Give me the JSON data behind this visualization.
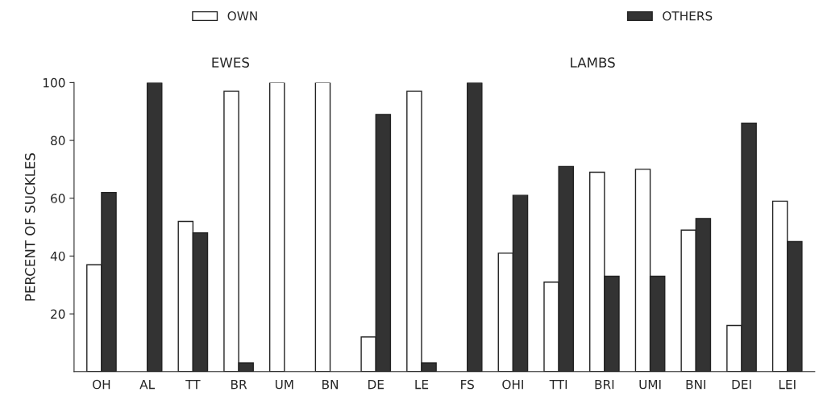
{
  "chart_data": {
    "type": "bar",
    "ylabel": "PERCENT OF SUCKLES",
    "categories": [
      "OH",
      "AL",
      "TT",
      "BR",
      "UM",
      "BN",
      "DE",
      "LE",
      "FS",
      "OHI",
      "TTI",
      "BRI",
      "UMI",
      "BNI",
      "DEI",
      "LEI"
    ],
    "series": [
      {
        "name": "OWN",
        "color": "#ffffff",
        "values": [
          37,
          null,
          52,
          97,
          100,
          100,
          12,
          97,
          null,
          41,
          31,
          69,
          70,
          49,
          16,
          59
        ]
      },
      {
        "name": "OTHERS",
        "color": "#333333",
        "values": [
          62,
          100,
          48,
          3,
          null,
          null,
          89,
          3,
          100,
          61,
          71,
          33,
          33,
          53,
          86,
          45
        ]
      }
    ],
    "annotations": [
      "EWES",
      "LAMBS"
    ],
    "ylim": [
      0,
      100
    ],
    "yticks": [
      20,
      40,
      60,
      80,
      100
    ],
    "grid": false,
    "legend": "top"
  }
}
